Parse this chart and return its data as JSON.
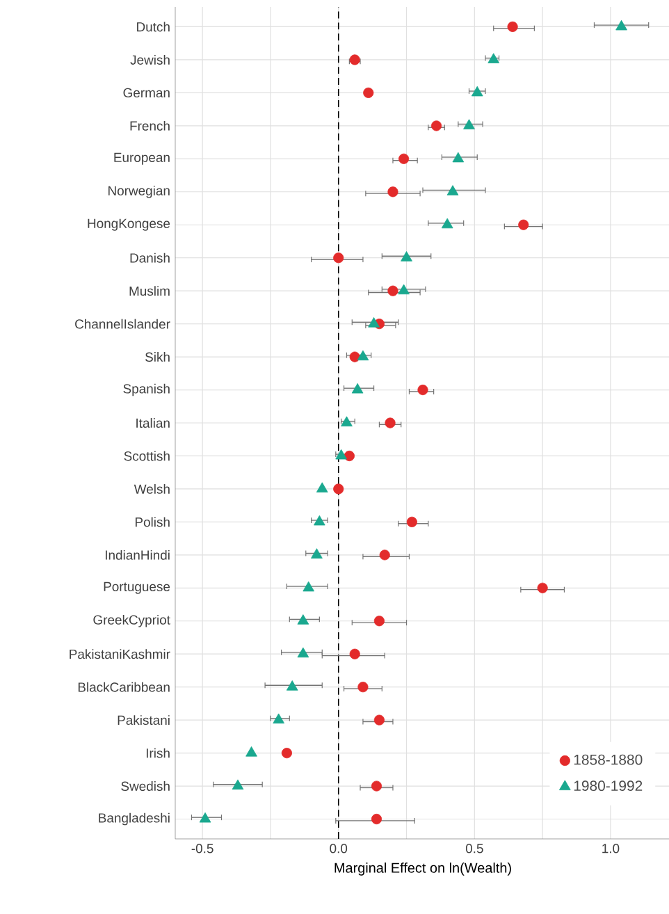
{
  "chart_data": {
    "type": "scatter",
    "orientation": "horizontal",
    "xlabel": "Marginal Effect on ln(Wealth)",
    "categories": [
      "Dutch",
      "Jewish",
      "German",
      "French",
      "European",
      "Norwegian",
      "HongKongese",
      "Danish",
      "Muslim",
      "ChannelIslander",
      "Sikh",
      "Spanish",
      "Italian",
      "Scottish",
      "Welsh",
      "Polish",
      "IndianHindi",
      "Portuguese",
      "GreekCypriot",
      "PakistaniKashmir",
      "BlackCaribbean",
      "Pakistani",
      "Irish",
      "Swedish",
      "Bangladeshi"
    ],
    "series": [
      {
        "name": "1858-1880",
        "color": "#e32b2b",
        "marker": "circle",
        "values": [
          0.64,
          0.06,
          0.11,
          0.36,
          0.24,
          0.2,
          0.68,
          0.0,
          0.2,
          0.15,
          0.06,
          0.31,
          0.19,
          0.04,
          0.0,
          0.27,
          0.17,
          0.75,
          0.15,
          0.06,
          0.09,
          0.15,
          -0.19,
          0.14,
          0.14
        ],
        "errors": [
          [
            0.57,
            0.72
          ],
          [
            0.04,
            0.08
          ],
          null,
          [
            0.33,
            0.39
          ],
          [
            0.2,
            0.29
          ],
          [
            0.1,
            0.3
          ],
          [
            0.61,
            0.75
          ],
          [
            -0.1,
            0.09
          ],
          [
            0.11,
            0.3
          ],
          [
            0.1,
            0.21
          ],
          null,
          [
            0.26,
            0.35
          ],
          [
            0.15,
            0.23
          ],
          null,
          null,
          [
            0.22,
            0.33
          ],
          [
            0.09,
            0.26
          ],
          [
            0.67,
            0.83
          ],
          [
            0.05,
            0.25
          ],
          [
            -0.06,
            0.17
          ],
          [
            0.02,
            0.16
          ],
          [
            0.09,
            0.2
          ],
          null,
          [
            0.08,
            0.2
          ],
          [
            -0.01,
            0.28
          ]
        ]
      },
      {
        "name": "1980-1992",
        "color": "#1aa88f",
        "marker": "triangle",
        "values": [
          1.04,
          0.57,
          0.51,
          0.48,
          0.44,
          0.42,
          0.4,
          0.25,
          0.24,
          0.13,
          0.09,
          0.07,
          0.03,
          0.01,
          -0.06,
          -0.07,
          -0.08,
          -0.11,
          -0.13,
          -0.13,
          -0.17,
          -0.22,
          -0.32,
          -0.37,
          -0.49
        ],
        "errors": [
          [
            0.94,
            1.14
          ],
          [
            0.54,
            0.59
          ],
          [
            0.48,
            0.54
          ],
          [
            0.44,
            0.53
          ],
          [
            0.38,
            0.51
          ],
          [
            0.31,
            0.54
          ],
          [
            0.33,
            0.46
          ],
          [
            0.16,
            0.34
          ],
          [
            0.16,
            0.32
          ],
          [
            0.05,
            0.22
          ],
          [
            0.03,
            0.12
          ],
          [
            0.02,
            0.13
          ],
          [
            0.01,
            0.06
          ],
          [
            -0.01,
            0.03
          ],
          null,
          [
            -0.1,
            -0.04
          ],
          [
            -0.12,
            -0.04
          ],
          [
            -0.19,
            -0.04
          ],
          [
            -0.18,
            -0.07
          ],
          [
            -0.21,
            -0.06
          ],
          [
            -0.27,
            -0.06
          ],
          [
            -0.25,
            -0.18
          ],
          null,
          [
            -0.46,
            -0.28
          ],
          [
            -0.54,
            -0.43
          ]
        ]
      }
    ],
    "xlim": [
      -0.6,
      1.22
    ],
    "xticks": [
      -0.5,
      {
        "value": -0.25,
        "label": null
      },
      {
        "value": 0,
        "label": "0.0"
      },
      {
        "value": 0.25,
        "label": null
      },
      0.5,
      {
        "value": 0.75,
        "label": null
      },
      {
        "value": 1,
        "label": "1.0"
      }
    ],
    "ref_lines": [
      {
        "axis": "x",
        "value": 0,
        "color": "#000000",
        "line_style": "dashed"
      }
    ],
    "grid": true,
    "legend": "bottom right"
  }
}
